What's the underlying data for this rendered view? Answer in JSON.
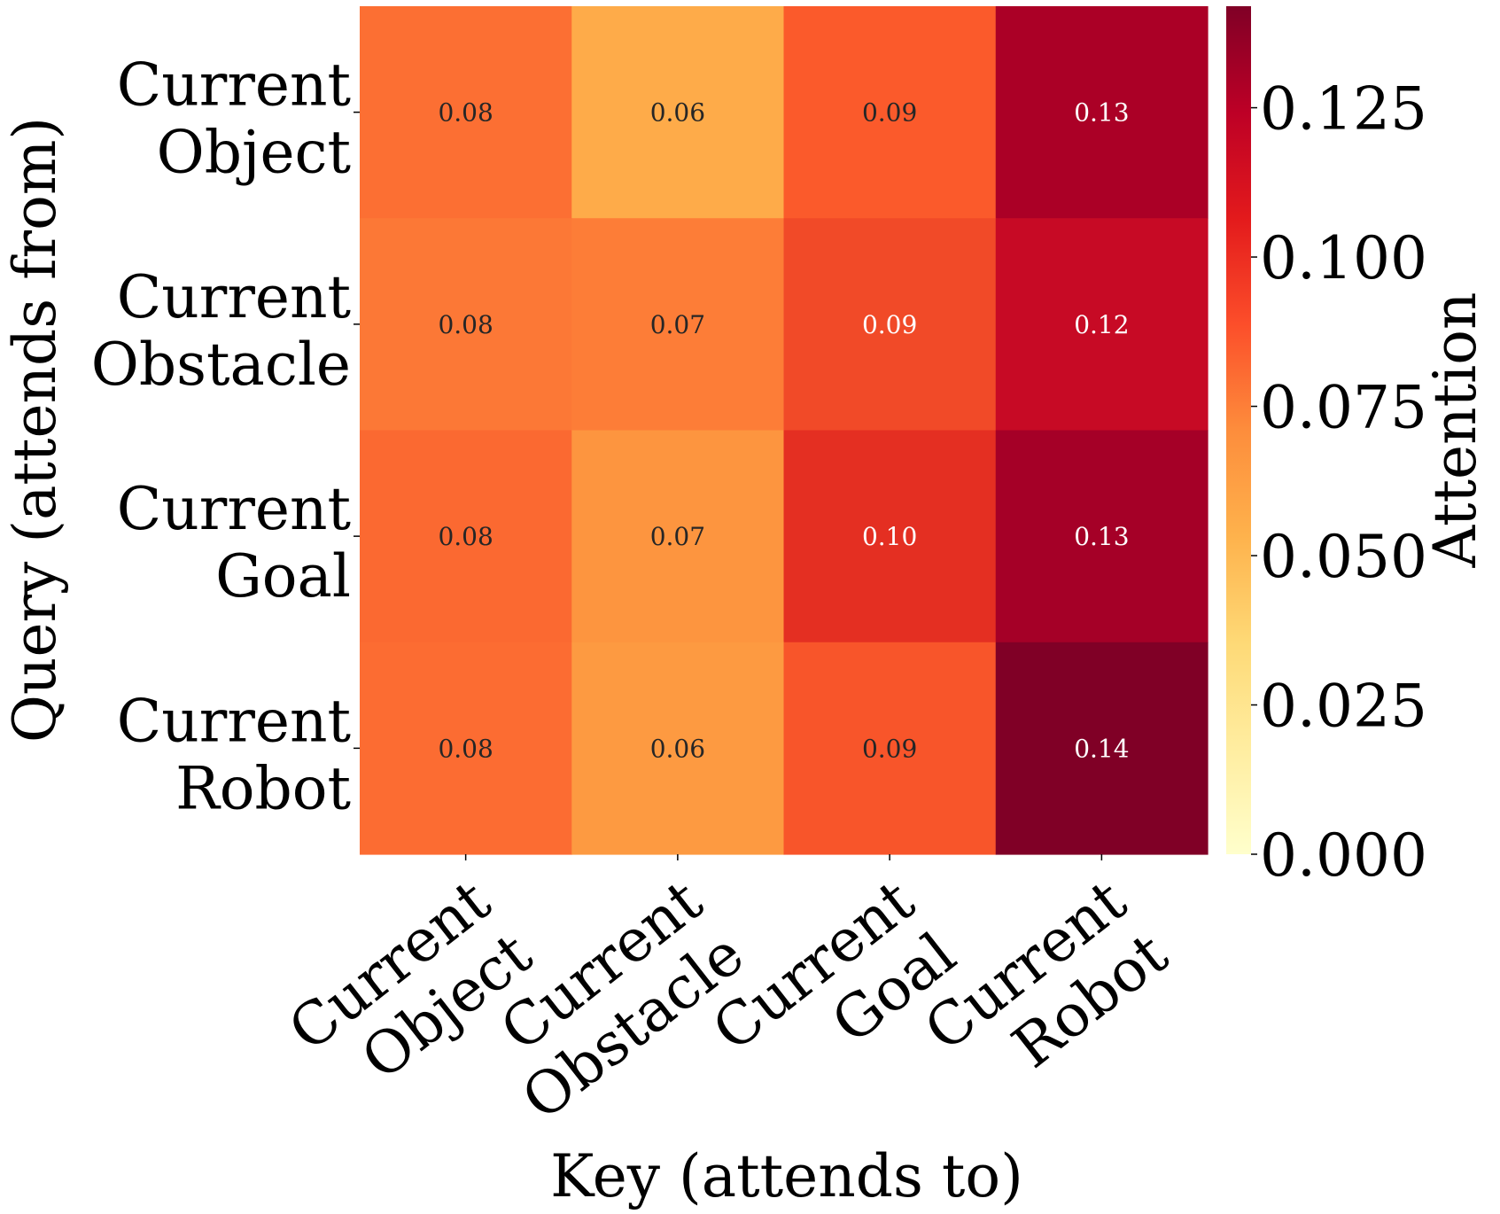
{
  "chart_data": {
    "type": "heatmap",
    "title": "",
    "xlabel": "Key (attends to)",
    "ylabel": "Query (attends from)",
    "x_categories": [
      [
        "Current",
        "Object"
      ],
      [
        "Current",
        "Obstacle"
      ],
      [
        "Current",
        "Goal"
      ],
      [
        "Current",
        "Robot"
      ]
    ],
    "y_categories": [
      [
        "Current",
        "Object"
      ],
      [
        "Current",
        "Obstacle"
      ],
      [
        "Current",
        "Goal"
      ],
      [
        "Current",
        "Robot"
      ]
    ],
    "values": [
      [
        0.08,
        0.06,
        0.09,
        0.13
      ],
      [
        0.08,
        0.07,
        0.09,
        0.12
      ],
      [
        0.08,
        0.07,
        0.1,
        0.13
      ],
      [
        0.08,
        0.06,
        0.09,
        0.14
      ]
    ],
    "cell_labels": [
      [
        "0.08",
        "0.06",
        "0.09",
        "0.13"
      ],
      [
        "0.08",
        "0.07",
        "0.09",
        "0.12"
      ],
      [
        "0.08",
        "0.07",
        "0.10",
        "0.13"
      ],
      [
        "0.08",
        "0.06",
        "0.09",
        "0.14"
      ]
    ],
    "cell_colors": [
      [
        "#fc6f33",
        "#feab49",
        "#fb5a2b",
        "#ab0026"
      ],
      [
        "#fc7836",
        "#fd7d37",
        "#f14a28",
        "#c70a25"
      ],
      [
        "#fb6931",
        "#fd953f",
        "#e42f22",
        "#a50027"
      ],
      [
        "#fc6c32",
        "#fd9a41",
        "#f8552a",
        "#800026"
      ]
    ],
    "colorbar": {
      "label": "Attention",
      "range": [
        0,
        0.142
      ],
      "ticks": [
        0.0,
        0.025,
        0.05,
        0.075,
        0.1,
        0.125
      ],
      "tick_labels": [
        "0.000",
        "0.025",
        "0.050",
        "0.075",
        "0.100",
        "0.125"
      ],
      "colormap": "YlOrRd",
      "colormap_stops": [
        "#ffffcc",
        "#ffeda0",
        "#fed976",
        "#feb24c",
        "#fd8d3c",
        "#fc4e2a",
        "#e31a1c",
        "#bd0026",
        "#800026"
      ]
    },
    "label_text_colors": {
      "dark": "#262626",
      "light": "#ffffff"
    }
  }
}
